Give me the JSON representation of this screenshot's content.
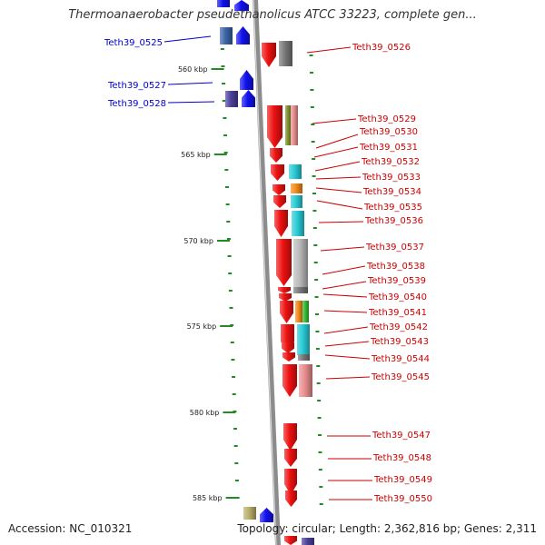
{
  "title": "Thermoanaerobacter pseudethanolicus ATCC 33223, complete gen...",
  "footer": {
    "accession": "Accession: NC_010321",
    "topology": "Topology: circular; Length: 2,362,816 bp; Genes: 2,311"
  },
  "colors": {
    "backbone": "#8c8c8c",
    "tick": "#228B22",
    "forward_label": "#0000cc",
    "reverse_label": "#cc0000",
    "reverse_arrow": "#ee1111",
    "blue": "#1111ee",
    "dark_blue": "#3a64a6",
    "navy": "#4a3f9a",
    "gray": "#777777",
    "light_gray": "#b8b8b8",
    "olive": "#7a8c2a",
    "pink": "#e98d8d",
    "cyan": "#27cbd6",
    "orange": "#f28a18",
    "green": "#33bb33",
    "tan": "#b8ae6a"
  },
  "scale": [
    {
      "kbp": 560,
      "label": "560 kbp"
    },
    {
      "kbp": 565,
      "label": "565 kbp"
    },
    {
      "kbp": 570,
      "label": "570 kbp"
    },
    {
      "kbp": 575,
      "label": "575 kbp"
    },
    {
      "kbp": 580,
      "label": "580 kbp"
    },
    {
      "kbp": 585,
      "label": "585 kbp"
    }
  ],
  "genes": [
    {
      "id": "Teth39_0525",
      "strand": "forward"
    },
    {
      "id": "Teth39_0526",
      "strand": "reverse"
    },
    {
      "id": "Teth39_0527",
      "strand": "forward"
    },
    {
      "id": "Teth39_0528",
      "strand": "forward"
    },
    {
      "id": "Teth39_0529",
      "strand": "reverse"
    },
    {
      "id": "Teth39_0530",
      "strand": "reverse"
    },
    {
      "id": "Teth39_0531",
      "strand": "reverse"
    },
    {
      "id": "Teth39_0532",
      "strand": "reverse"
    },
    {
      "id": "Teth39_0533",
      "strand": "reverse"
    },
    {
      "id": "Teth39_0534",
      "strand": "reverse"
    },
    {
      "id": "Teth39_0535",
      "strand": "reverse"
    },
    {
      "id": "Teth39_0536",
      "strand": "reverse"
    },
    {
      "id": "Teth39_0537",
      "strand": "reverse"
    },
    {
      "id": "Teth39_0538",
      "strand": "reverse"
    },
    {
      "id": "Teth39_0539",
      "strand": "reverse"
    },
    {
      "id": "Teth39_0540",
      "strand": "reverse"
    },
    {
      "id": "Teth39_0541",
      "strand": "reverse"
    },
    {
      "id": "Teth39_0542",
      "strand": "reverse"
    },
    {
      "id": "Teth39_0543",
      "strand": "reverse"
    },
    {
      "id": "Teth39_0544",
      "strand": "reverse"
    },
    {
      "id": "Teth39_0545",
      "strand": "reverse"
    },
    {
      "id": "Teth39_0547",
      "strand": "reverse"
    },
    {
      "id": "Teth39_0548",
      "strand": "reverse"
    },
    {
      "id": "Teth39_0549",
      "strand": "reverse"
    },
    {
      "id": "Teth39_0550",
      "strand": "reverse"
    }
  ]
}
